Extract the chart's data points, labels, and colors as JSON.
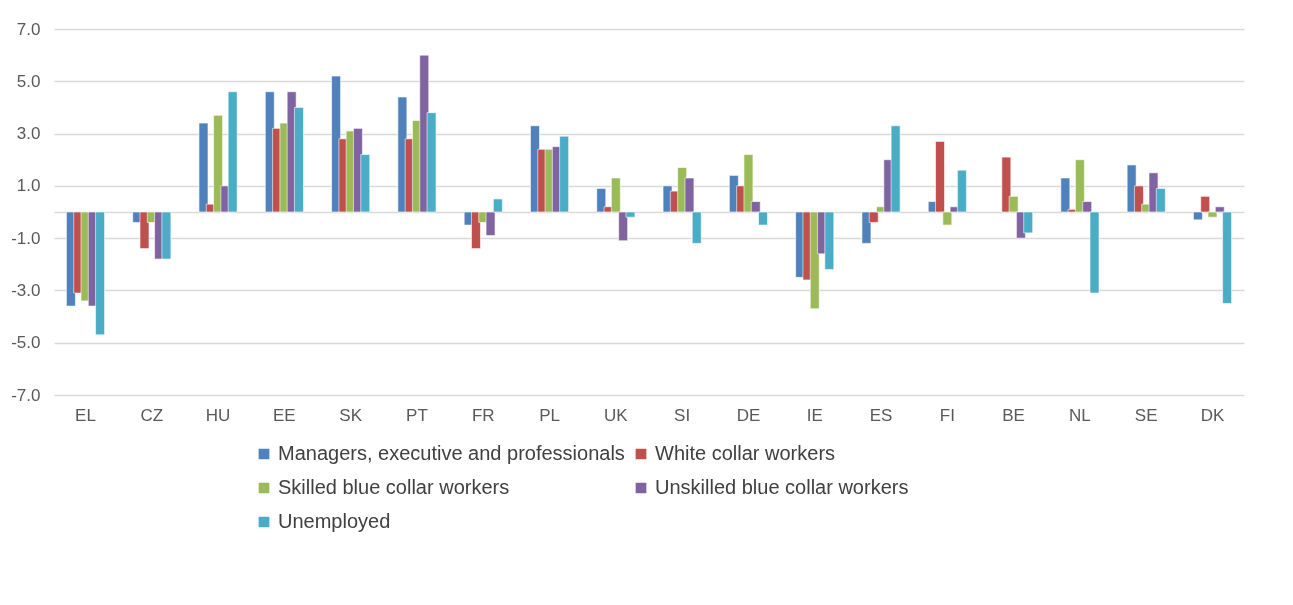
{
  "chart_data": {
    "type": "bar",
    "categories": [
      "EL",
      "CZ",
      "HU",
      "EE",
      "SK",
      "PT",
      "FR",
      "PL",
      "UK",
      "SI",
      "DE",
      "IE",
      "ES",
      "FI",
      "BE",
      "NL",
      "SE",
      "DK"
    ],
    "series": [
      {
        "name": "Managers, executive and professionals",
        "color": "#4f81bd",
        "values": [
          -3.6,
          -0.4,
          3.4,
          4.6,
          5.2,
          4.4,
          -0.5,
          3.3,
          0.9,
          1.0,
          1.4,
          -2.5,
          -1.2,
          0.4,
          null,
          1.3,
          1.8,
          -0.3
        ]
      },
      {
        "name": "White collar workers",
        "color": "#c0504d",
        "values": [
          -3.1,
          -1.4,
          0.3,
          3.2,
          2.8,
          2.8,
          -1.4,
          2.4,
          0.2,
          0.8,
          1.0,
          -2.6,
          -0.4,
          2.7,
          2.1,
          0.1,
          1.0,
          0.6
        ]
      },
      {
        "name": "Skilled blue collar workers",
        "color": "#9bbb59",
        "values": [
          -3.4,
          -0.4,
          3.7,
          3.4,
          3.1,
          3.5,
          -0.4,
          2.4,
          1.3,
          1.7,
          2.2,
          -3.7,
          0.2,
          -0.5,
          0.6,
          2.0,
          0.3,
          -0.2
        ]
      },
      {
        "name": "Unskilled blue collar workers",
        "color": "#8064a2",
        "values": [
          -3.6,
          -1.8,
          1.0,
          4.6,
          3.2,
          6.0,
          -0.9,
          2.5,
          -1.1,
          1.3,
          0.4,
          -1.6,
          2.0,
          0.2,
          -1.0,
          0.4,
          1.5,
          0.2
        ]
      },
      {
        "name": "Unemployed",
        "color": "#4bacc6",
        "values": [
          -4.7,
          -1.8,
          4.6,
          4.0,
          2.2,
          3.8,
          0.5,
          2.9,
          -0.2,
          -1.2,
          -0.5,
          -2.2,
          3.3,
          1.6,
          -0.8,
          -3.1,
          0.9,
          -3.5
        ]
      }
    ],
    "ylim": [
      -7.0,
      7.0
    ],
    "yticks": [
      {
        "value": -7,
        "label": "-7.0"
      },
      {
        "value": -5,
        "label": "-5.0"
      },
      {
        "value": -3,
        "label": "-3.0"
      },
      {
        "value": -1,
        "label": "-1.0"
      },
      {
        "value": 0,
        "label": null
      },
      {
        "value": 1,
        "label": "1.0"
      },
      {
        "value": 3,
        "label": "3.0"
      },
      {
        "value": 5,
        "label": "5.0"
      },
      {
        "value": 7,
        "label": "7.0"
      }
    ],
    "grid": "y",
    "legend": "bottom"
  }
}
